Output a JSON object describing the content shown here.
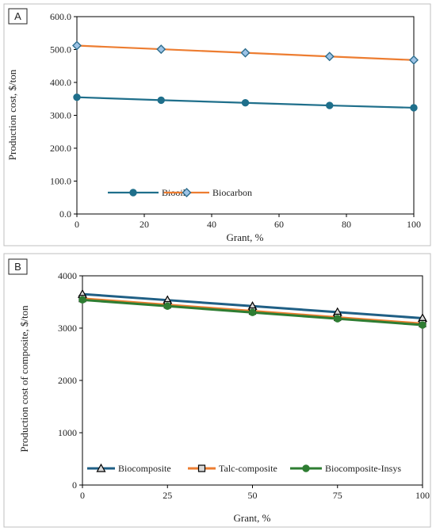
{
  "chart_data": [
    {
      "type": "line",
      "panel_label": "A",
      "xlabel": "Grant, %",
      "ylabel": "Production cost, $/ton",
      "x": [
        0,
        25,
        50,
        75,
        100
      ],
      "xlim": [
        0,
        100
      ],
      "xticks": [
        0,
        20,
        40,
        60,
        80,
        100
      ],
      "xtick_labels": [
        "0",
        "20",
        "40",
        "60",
        "80",
        "100"
      ],
      "ylim": [
        0,
        600
      ],
      "yticks": [
        0,
        100,
        200,
        300,
        400,
        500,
        600
      ],
      "ytick_labels": [
        "0.0",
        "100.0",
        "200.0",
        "300.0",
        "400.0",
        "500.0",
        "600.0"
      ],
      "grid": false,
      "legend_position": "bottom-left",
      "series": [
        {
          "name": "Biooil",
          "values": [
            355,
            346,
            338,
            330,
            323
          ],
          "color": "#1f6f8b",
          "marker": "circle"
        },
        {
          "name": "Biocarbon",
          "values": [
            512,
            501,
            490,
            479,
            468
          ],
          "color": "#ed7d31",
          "marker": "diamond",
          "marker_fill": "#9dc3e6",
          "marker_stroke": "#2e6e8e"
        }
      ]
    },
    {
      "type": "line",
      "panel_label": "B",
      "xlabel": "Grant, %",
      "ylabel": "Production cost of composite, $/ton",
      "x": [
        0,
        25,
        50,
        75,
        100
      ],
      "xlim": [
        0,
        100
      ],
      "xticks": [
        0,
        25,
        50,
        75,
        100
      ],
      "xtick_labels": [
        "0",
        "25",
        "50",
        "75",
        "100"
      ],
      "ylim": [
        0,
        4000
      ],
      "yticks": [
        0,
        1000,
        2000,
        3000,
        4000
      ],
      "ytick_labels": [
        "0",
        "1000",
        "2000",
        "3000",
        "4000"
      ],
      "grid": false,
      "legend_position": "bottom",
      "series": [
        {
          "name": "Biocomposite",
          "values": [
            3650,
            3535,
            3420,
            3305,
            3190
          ],
          "color": "#1f5f85",
          "marker": "triangle"
        },
        {
          "name": "Talc-composite",
          "values": [
            3565,
            3445,
            3325,
            3205,
            3085
          ],
          "color": "#ed7d31",
          "marker": "square"
        },
        {
          "name": "Biocomposite-Insys",
          "values": [
            3540,
            3420,
            3300,
            3180,
            3060
          ],
          "color": "#2e7d32",
          "marker": "circle"
        }
      ]
    }
  ]
}
